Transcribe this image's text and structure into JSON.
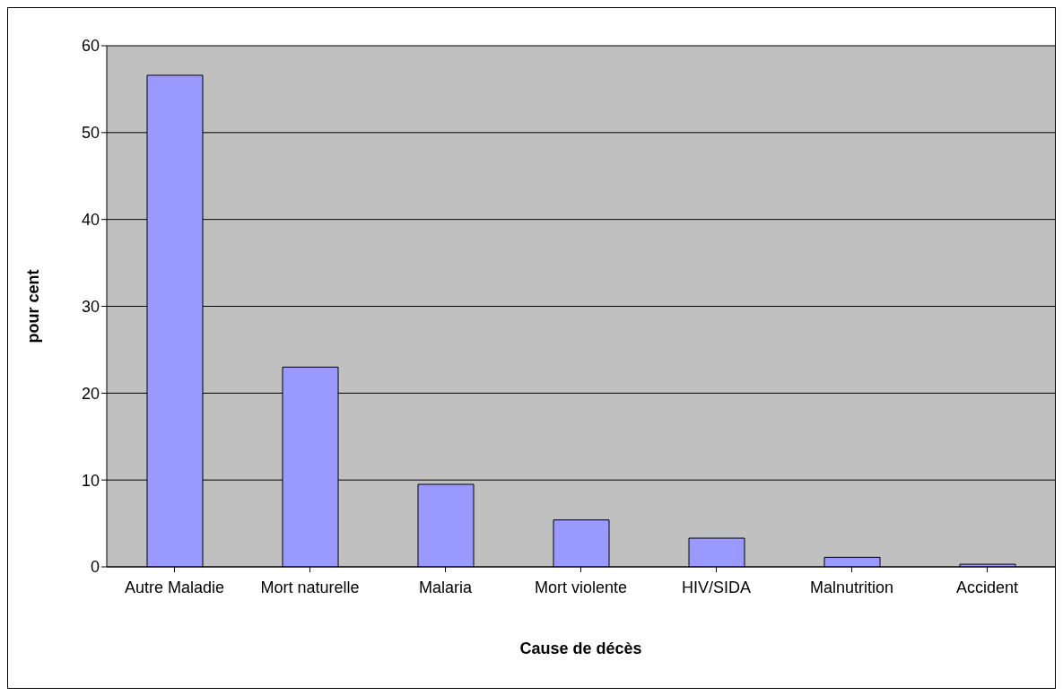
{
  "chart_data": {
    "type": "bar",
    "xlabel": "Cause de décès",
    "ylabel": "pour cent",
    "categories": [
      "Autre Maladie",
      "Mort naturelle",
      "Malaria",
      "Mort violente",
      "HIV/SIDA",
      "Malnutrition",
      "Accident"
    ],
    "values": [
      56.6,
      23.0,
      9.5,
      5.4,
      3.3,
      1.1,
      0.3
    ],
    "color": "#9999ff",
    "ylim": [
      0,
      60
    ],
    "yticks": [
      0,
      10,
      20,
      30,
      40,
      50,
      60
    ],
    "grid": "y",
    "legend": false
  }
}
